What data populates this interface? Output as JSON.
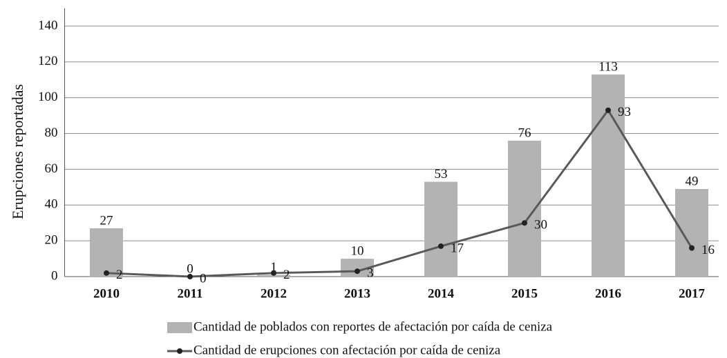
{
  "chart_data": {
    "type": "bar_line",
    "y_label": "Erupciones reportadas",
    "categories": [
      "2010",
      "2011",
      "2012",
      "2013",
      "2014",
      "2015",
      "2016",
      "2017"
    ],
    "series": [
      {
        "name": "Cantidad de poblados con reportes de afectación por caída de ceniza",
        "type": "bar",
        "color": "#b3b3b3",
        "values": [
          27,
          0,
          1,
          10,
          53,
          76,
          113,
          49
        ]
      },
      {
        "name": "Cantidad de erupciones con afectación por caída de ceniza",
        "type": "line",
        "color": "#595959",
        "values": [
          2,
          0,
          2,
          3,
          17,
          30,
          93,
          16
        ]
      }
    ],
    "ylim": [
      0,
      150
    ],
    "yticks": [
      0,
      20,
      40,
      60,
      80,
      100,
      120,
      140
    ],
    "grid": true
  }
}
